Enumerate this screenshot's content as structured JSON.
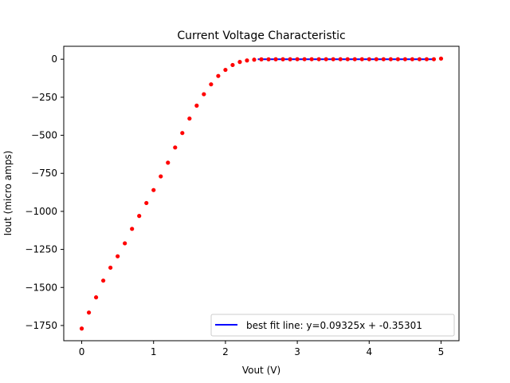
{
  "chart_data": {
    "type": "scatter",
    "title": "Current Voltage Characteristic",
    "xlabel": "Vout (V)",
    "ylabel": "Iout (micro amps)",
    "xlim": [
      -0.25,
      5.25
    ],
    "ylim": [
      -1850,
      85
    ],
    "xticks": [
      0,
      1,
      2,
      3,
      4,
      5
    ],
    "yticks": [
      0,
      -250,
      -500,
      -750,
      -1000,
      -1250,
      -1500,
      -1750
    ],
    "grid": false,
    "legend_position": "lower right",
    "colors": {
      "points": "#ff0000",
      "fit_line": "#0000ff"
    },
    "series": [
      {
        "kind": "scatter",
        "x": [
          0.0,
          0.1,
          0.2,
          0.3,
          0.4,
          0.5,
          0.6,
          0.7,
          0.8,
          0.9,
          1.0,
          1.1,
          1.2,
          1.3,
          1.4,
          1.5,
          1.6,
          1.7,
          1.8,
          1.9,
          2.0,
          2.1,
          2.2,
          2.3,
          2.4,
          2.5,
          2.6,
          2.7,
          2.8,
          2.9,
          3.0,
          3.1,
          3.2,
          3.3,
          3.4,
          3.5,
          3.6,
          3.7,
          3.8,
          3.9,
          4.0,
          4.1,
          4.2,
          4.3,
          4.4,
          4.5,
          4.6,
          4.7,
          4.8,
          4.9,
          5.0
        ],
        "y": [
          -1770,
          -1665,
          -1565,
          -1455,
          -1370,
          -1295,
          -1210,
          -1115,
          -1030,
          -945,
          -860,
          -770,
          -680,
          -580,
          -485,
          -390,
          -305,
          -230,
          -165,
          -110,
          -70,
          -38,
          -18,
          -8,
          -3,
          -1,
          -0.5,
          -0.3,
          -0.2,
          -0.1,
          0,
          0,
          0,
          0,
          0,
          0,
          0,
          0,
          0,
          0,
          0,
          0,
          0,
          0,
          0,
          0,
          0,
          0,
          0,
          0,
          4
        ]
      },
      {
        "kind": "line",
        "name": "best fit line: y=0.09325x + -0.35301",
        "x": [
          2.45,
          4.9
        ],
        "y": [
          -0.12,
          0.1
        ]
      }
    ]
  }
}
